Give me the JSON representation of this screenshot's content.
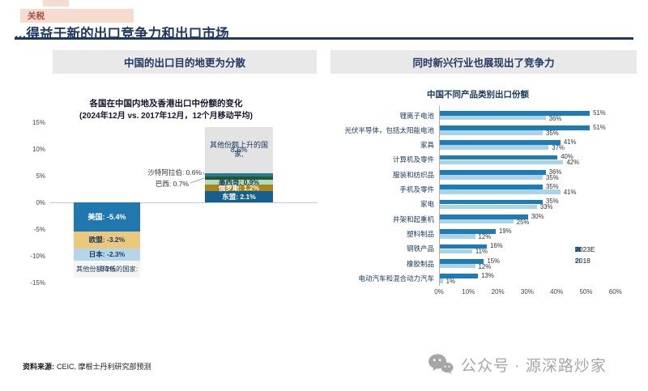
{
  "page": {
    "tag_label": "关税",
    "title": "...得益于新的出口竞争力和出口市场",
    "footer": {
      "source_label": "资料来源:",
      "source_text": "CEIC, 摩根士丹利研究部预测"
    },
    "watermark": {
      "icon": "wechat-icon",
      "text": "公众号 · 源深路炒家"
    },
    "colors": {
      "navy": "#1f3864",
      "tag_bg": "#f5dbd0",
      "tag_text": "#a94f3d",
      "panel_header_bg": "#e9e9e9"
    }
  },
  "left_panel": {
    "header": "中国的出口目的地更为分散"
  },
  "right_panel": {
    "header": "同时新兴行业也展现出了竞争力"
  },
  "chart_data": [
    {
      "type": "bar",
      "subtype": "stacked-diverging-column",
      "title": "各国在中国内地及香港出口中份额的变化",
      "subtitle": "(2024年12月 vs. 2017年12月，12个月移动平均)",
      "unit": "%",
      "ylim": [
        -15,
        15
      ],
      "y_ticks": [
        "15%",
        "10%",
        "5%",
        "0%",
        "-5%",
        "-10%",
        "-15%"
      ],
      "increase_stack_bottom_up": [
        {
          "label": "东盟",
          "value": 2.1,
          "display": "东盟: 2.1%",
          "color": "#175f8d",
          "text_color": "#ffffff",
          "mode": "inside"
        },
        {
          "label": "俄罗斯",
          "value": 1.2,
          "display": "俄罗斯: 1.2%",
          "color": "#a5861d",
          "text_color": "#ffffff",
          "mode": "inside"
        },
        {
          "label": "墨西哥",
          "value": 0.9,
          "display": "墨西哥: 0.9%",
          "color": "#b9d7b9",
          "text_color": "#17375e",
          "mode": "inside"
        },
        {
          "label": "巴西",
          "value": 0.7,
          "display": "巴西: 0.7%",
          "color": "#21583a",
          "mode": "callout"
        },
        {
          "label": "沙特阿拉伯",
          "value": 0.6,
          "display": "沙特阿拉伯: 0.6%",
          "color": "#2c7b8c",
          "mode": "callout"
        },
        {
          "label": "其他份额上升的国家",
          "value": 8.6,
          "display_line1": "其他份额上升的国家,",
          "display_line2": "8.6%",
          "color": "#e3e3e3",
          "text_color": "#17375e",
          "mode": "box"
        }
      ],
      "decrease_stack_top_down": [
        {
          "label": "美国",
          "value": -5.4,
          "display": "美国: -5.4%",
          "color": "#2078ae",
          "text_color": "#ffffff",
          "mode": "inside"
        },
        {
          "label": "欧盟",
          "value": -3.2,
          "display": "欧盟: -3.2%",
          "color": "#eac87d",
          "text_color": "#17375e",
          "mode": "inside"
        },
        {
          "label": "日本",
          "value": -2.3,
          "display": "日本: -2.3%",
          "color": "#b5d6e8",
          "text_color": "#17375e",
          "mode": "inside"
        },
        {
          "label": "其他份额降低的国家",
          "value": -3.2,
          "display_line1": "其他份额降低的国家:",
          "display_line2": "-3.2%",
          "color": "#f4f4f3",
          "text_color": "#17375e",
          "mode": "box"
        }
      ]
    },
    {
      "type": "bar",
      "orientation": "horizontal",
      "title": "中国不同产品类别出口份额",
      "categories": [
        "锂离子电池",
        "光伏半导体，包括太阳能电池",
        "家具",
        "计算机及零件",
        "服装和纺织品",
        "手机及零件",
        "家电",
        "井架和起重机",
        "塑料制品",
        "钢铁产品",
        "橡胶制品",
        "电动汽车和混合动力汽车"
      ],
      "series": [
        {
          "name": "2023E",
          "color": "#1d7cb5",
          "values": [
            51,
            51,
            41,
            40,
            36,
            35,
            35,
            30,
            19,
            16,
            15,
            13
          ]
        },
        {
          "name": "2018",
          "color": "#aad3e5",
          "values": [
            36,
            35,
            37,
            42,
            35,
            41,
            33,
            25,
            12,
            11,
            12,
            1
          ]
        }
      ],
      "xlim": [
        0,
        60
      ],
      "x_ticks": [
        "0%",
        "10%",
        "20%",
        "30%",
        "40%",
        "50%",
        "60%"
      ],
      "legend_position": "middle-right",
      "value_labels": true
    }
  ]
}
